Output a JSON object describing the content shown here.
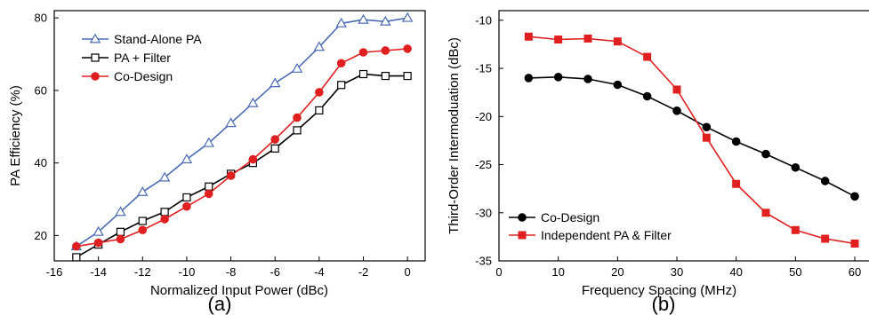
{
  "chart_data": [
    {
      "type": "line",
      "panel_label": "(a)",
      "xlabel": "Normalized Input Power (dBc)",
      "ylabel": "PA Efficiency (%)",
      "xlim": [
        -16,
        0.8
      ],
      "ylim": [
        13,
        82
      ],
      "xticks": [
        -16,
        -14,
        -12,
        -10,
        -8,
        -6,
        -4,
        -2,
        0
      ],
      "xtick_labels": [
        "-16",
        "-14",
        "-12",
        "-10",
        "-8",
        "-6",
        "-4",
        "-2",
        "0"
      ],
      "yticks": [
        20,
        40,
        60,
        80
      ],
      "ytick_labels": [
        "20",
        "40",
        "60",
        "80"
      ],
      "grid": false,
      "legend_position": "top-left",
      "x": [
        -15,
        -14,
        -13,
        -12,
        -11,
        -10,
        -9,
        -8,
        -7,
        -6,
        -5,
        -4,
        -3,
        -2,
        -1,
        0
      ],
      "series": [
        {
          "name": "Stand-Alone PA",
          "color": "#4a6cb3",
          "marker": "open-triangle",
          "values": [
            17,
            21,
            26.5,
            32,
            36,
            41,
            45.5,
            51,
            56.5,
            62,
            66,
            72,
            78.5,
            79.5,
            79,
            80
          ]
        },
        {
          "name": "PA + Filter",
          "color": "#000000",
          "marker": "open-square",
          "values": [
            14,
            17.5,
            21,
            24,
            26.5,
            30.5,
            33.5,
            37,
            40,
            44,
            49,
            54.5,
            61.5,
            64.5,
            64,
            64
          ]
        },
        {
          "name": "Co-Design",
          "color": "#e02020",
          "marker": "filled-circle",
          "values": [
            17,
            18,
            19,
            21.5,
            24.5,
            28,
            31.5,
            36.5,
            41,
            46.5,
            52.5,
            59.5,
            67.5,
            70.5,
            71,
            71.5
          ]
        }
      ]
    },
    {
      "type": "line",
      "panel_label": "(b)",
      "xlabel": "Frequency Spacing (MHz)",
      "ylabel": "Third-Order Intermoduation (dBc)",
      "xlim": [
        0,
        63
      ],
      "ylim": [
        -35,
        -9
      ],
      "xticks": [
        0,
        10,
        20,
        30,
        40,
        50,
        60
      ],
      "xtick_labels": [
        "0",
        "10",
        "20",
        "30",
        "40",
        "50",
        "60"
      ],
      "yticks": [
        -35,
        -30,
        -25,
        -20,
        -15,
        -10
      ],
      "ytick_labels": [
        "-35",
        "-30",
        "-25",
        "-20",
        "-15",
        "-10"
      ],
      "grid": false,
      "legend_position": "bottom-left",
      "x": [
        5,
        10,
        15,
        20,
        25,
        30,
        35,
        40,
        45,
        50,
        55,
        60
      ],
      "series": [
        {
          "name": "Co-Design",
          "color": "#000000",
          "marker": "filled-circle",
          "values": [
            -16,
            -15.9,
            -16.1,
            -16.7,
            -17.9,
            -19.4,
            -21.1,
            -22.6,
            -23.9,
            -25.3,
            -26.7,
            -28.3
          ]
        },
        {
          "name": "Independent PA & Filter",
          "color": "#e02020",
          "marker": "filled-square",
          "values": [
            -11.7,
            -12,
            -11.9,
            -12.2,
            -13.8,
            -17.2,
            -22.2,
            -27,
            -30,
            -31.8,
            -32.7,
            -33.2
          ]
        }
      ]
    }
  ]
}
